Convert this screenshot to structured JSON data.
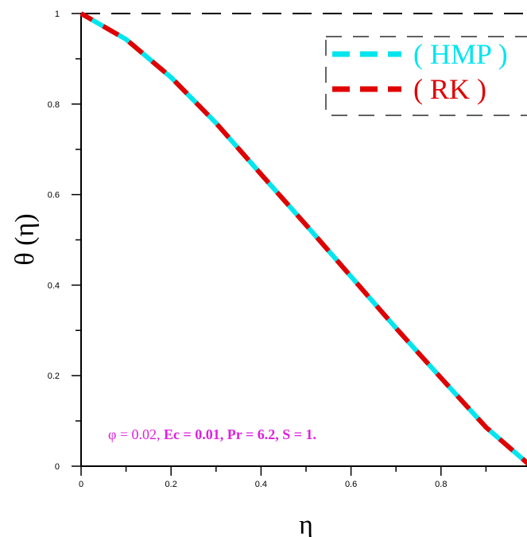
{
  "chart_data": {
    "type": "line",
    "xlabel": "η",
    "ylabel": "θ (η)",
    "xlim": [
      0,
      1
    ],
    "ylim": [
      0,
      1
    ],
    "x_ticks": [
      "0",
      "0.2",
      "0.4",
      "0.6",
      "0.8"
    ],
    "y_ticks": [
      "0",
      "0.2",
      "0.4",
      "0.6",
      "0.8",
      "1"
    ],
    "grid": false,
    "legend_position": "top-right",
    "series": [
      {
        "name": "( HMP )",
        "color": "#00e5ee",
        "style": "solid",
        "x": [
          0,
          0.1,
          0.2,
          0.3,
          0.4,
          0.5,
          0.6,
          0.7,
          0.8,
          0.9,
          1.0
        ],
        "y": [
          1.0,
          0.943,
          0.859,
          0.758,
          0.645,
          0.533,
          0.419,
          0.305,
          0.195,
          0.086,
          0.0
        ]
      },
      {
        "name": "( RK )",
        "color": "#e00000",
        "style": "dashed",
        "x": [
          0,
          0.1,
          0.2,
          0.3,
          0.4,
          0.5,
          0.6,
          0.7,
          0.8,
          0.9,
          1.0
        ],
        "y": [
          1.0,
          0.943,
          0.859,
          0.758,
          0.645,
          0.533,
          0.419,
          0.305,
          0.195,
          0.086,
          0.0
        ]
      }
    ],
    "annotation": {
      "phi": "φ = 0.02, ",
      "params": "Ec = 0.01, Pr = 6.2, S = 1."
    }
  }
}
